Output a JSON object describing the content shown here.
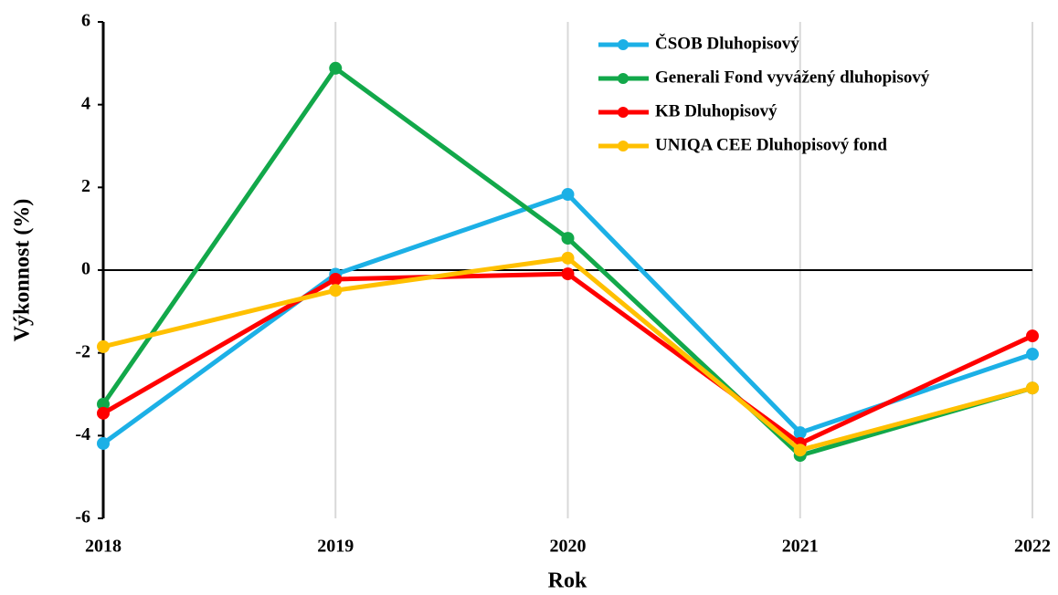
{
  "chart_data": {
    "type": "line",
    "x_label": "Rok",
    "y_label": "Výkonnost (%)",
    "x": [
      2018,
      2019,
      2020,
      2021,
      2022
    ],
    "xlim": [
      2018,
      2022
    ],
    "xticks": [
      2018,
      2019,
      2020,
      2021,
      2022
    ],
    "ylim": [
      -6,
      6
    ],
    "yticks": [
      -6,
      -4,
      -2,
      0,
      2,
      4,
      6
    ],
    "grid": "x",
    "legend": "upper right",
    "series": [
      {
        "name": "ČSOB Dluhopisový",
        "color": "#1cb0e6",
        "values": [
          -4.19,
          -0.1,
          1.83,
          -3.93,
          -2.03
        ]
      },
      {
        "name": "Generali Fond vyvážený dluhopisový",
        "color": "#12a84a",
        "values": [
          -3.24,
          4.88,
          0.77,
          -4.48,
          -2.85
        ]
      },
      {
        "name": "KB Dluhopisový",
        "color": "#ff0000",
        "values": [
          -3.46,
          -0.22,
          -0.09,
          -4.19,
          -1.59
        ]
      },
      {
        "name": "UNIQA CEE Dluhopisový fond",
        "color": "#ffc000",
        "values": [
          -1.85,
          -0.49,
          0.29,
          -4.35,
          -2.85
        ]
      }
    ]
  }
}
